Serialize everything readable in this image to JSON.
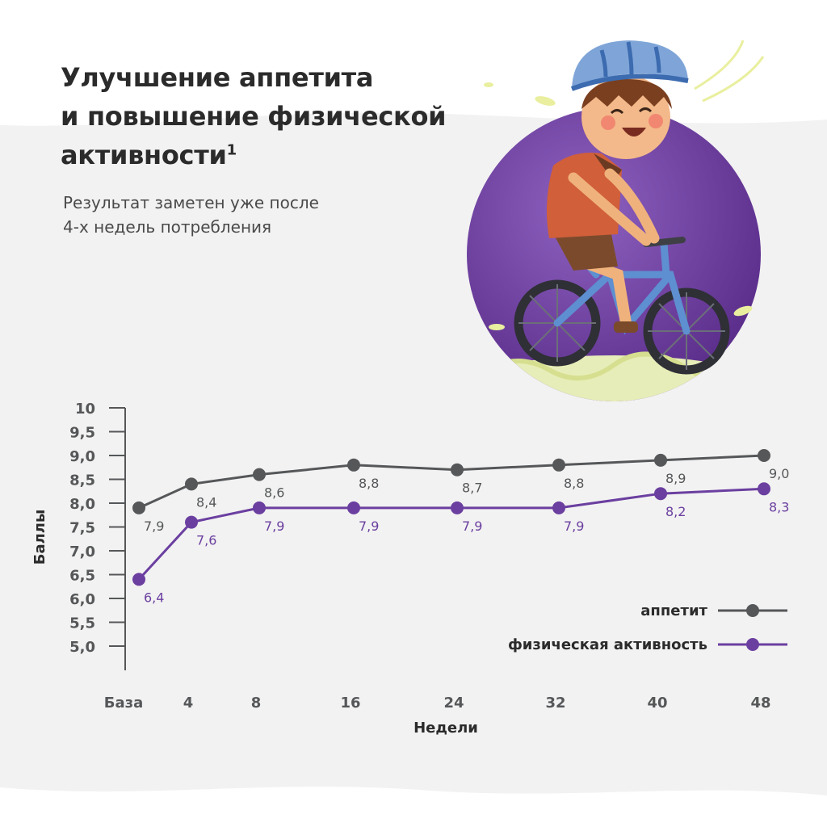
{
  "header": {
    "title_lines": [
      "Улучшение аппетита",
      "и повышение физической",
      "активности"
    ],
    "title_superscript": "1",
    "subtitle_lines": [
      "Результат заметен уже после",
      "4-х недель потребления"
    ]
  },
  "colors": {
    "appetite": "#555759",
    "activity": "#6b3fa0",
    "axis": "#555759",
    "illustration_circle": "#6a3b9c",
    "background_wave": "#f2f2f2"
  },
  "illustration": {
    "subject": "boy-riding-bicycle",
    "icon": "cyclist-icon"
  },
  "chart_data": {
    "type": "line",
    "xlabel": "Недели",
    "ylabel": "Баллы",
    "categories": [
      "База",
      "4",
      "8",
      "16",
      "24",
      "32",
      "40",
      "48"
    ],
    "y_ticks": [
      "10",
      "9,5",
      "9,0",
      "8,5",
      "8,0",
      "7,5",
      "7,0",
      "6,5",
      "6,0",
      "5,5",
      "5,0"
    ],
    "ylim": [
      4.5,
      10
    ],
    "grid": false,
    "legend_position": "bottom-right",
    "series": [
      {
        "name": "аппетит",
        "color": "#555759",
        "values": [
          7.9,
          8.4,
          8.6,
          8.8,
          8.7,
          8.8,
          8.9,
          9.0
        ],
        "labels": [
          "7,9",
          "8,4",
          "8,6",
          "8,8",
          "8,7",
          "8,8",
          "8,9",
          "9,0"
        ]
      },
      {
        "name": "физическая активность",
        "color": "#6b3fa0",
        "values": [
          6.4,
          7.6,
          7.9,
          7.9,
          7.9,
          7.9,
          8.2,
          8.3
        ],
        "labels": [
          "6,4",
          "7,6",
          "7,9",
          "7,9",
          "7,9",
          "7,9",
          "8,2",
          "8,3"
        ]
      }
    ]
  }
}
